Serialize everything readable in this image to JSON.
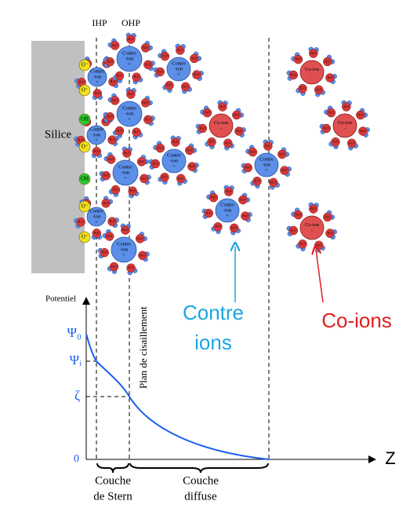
{
  "labels": {
    "ihp": "IHP",
    "ohp": "OHP",
    "surface": "Silice",
    "shear_plane": "Plan de cisaillement"
  },
  "surface_groups": [
    "O⁻",
    "O⁻",
    "OH",
    "O⁻",
    "OH",
    "O⁻",
    "O⁻"
  ],
  "ions": {
    "counter_ion": [
      "Contre",
      "-ion",
      "+"
    ],
    "co_ion": [
      "Co-ion",
      "-"
    ],
    "water": "H₂O"
  },
  "graph": {
    "y_label": "Potentiel",
    "psi0": "Ψ₀",
    "psii": "Ψᵢ",
    "zeta": "ζ",
    "zero": "0",
    "x_label": "Z"
  },
  "legend": {
    "counter_ions": [
      "Contre",
      "ions"
    ],
    "co_ions": "Co-ions"
  },
  "layers": {
    "stern": [
      "Couche",
      "de Stern"
    ],
    "diffuse": [
      "Couche",
      "diffuse"
    ]
  }
}
